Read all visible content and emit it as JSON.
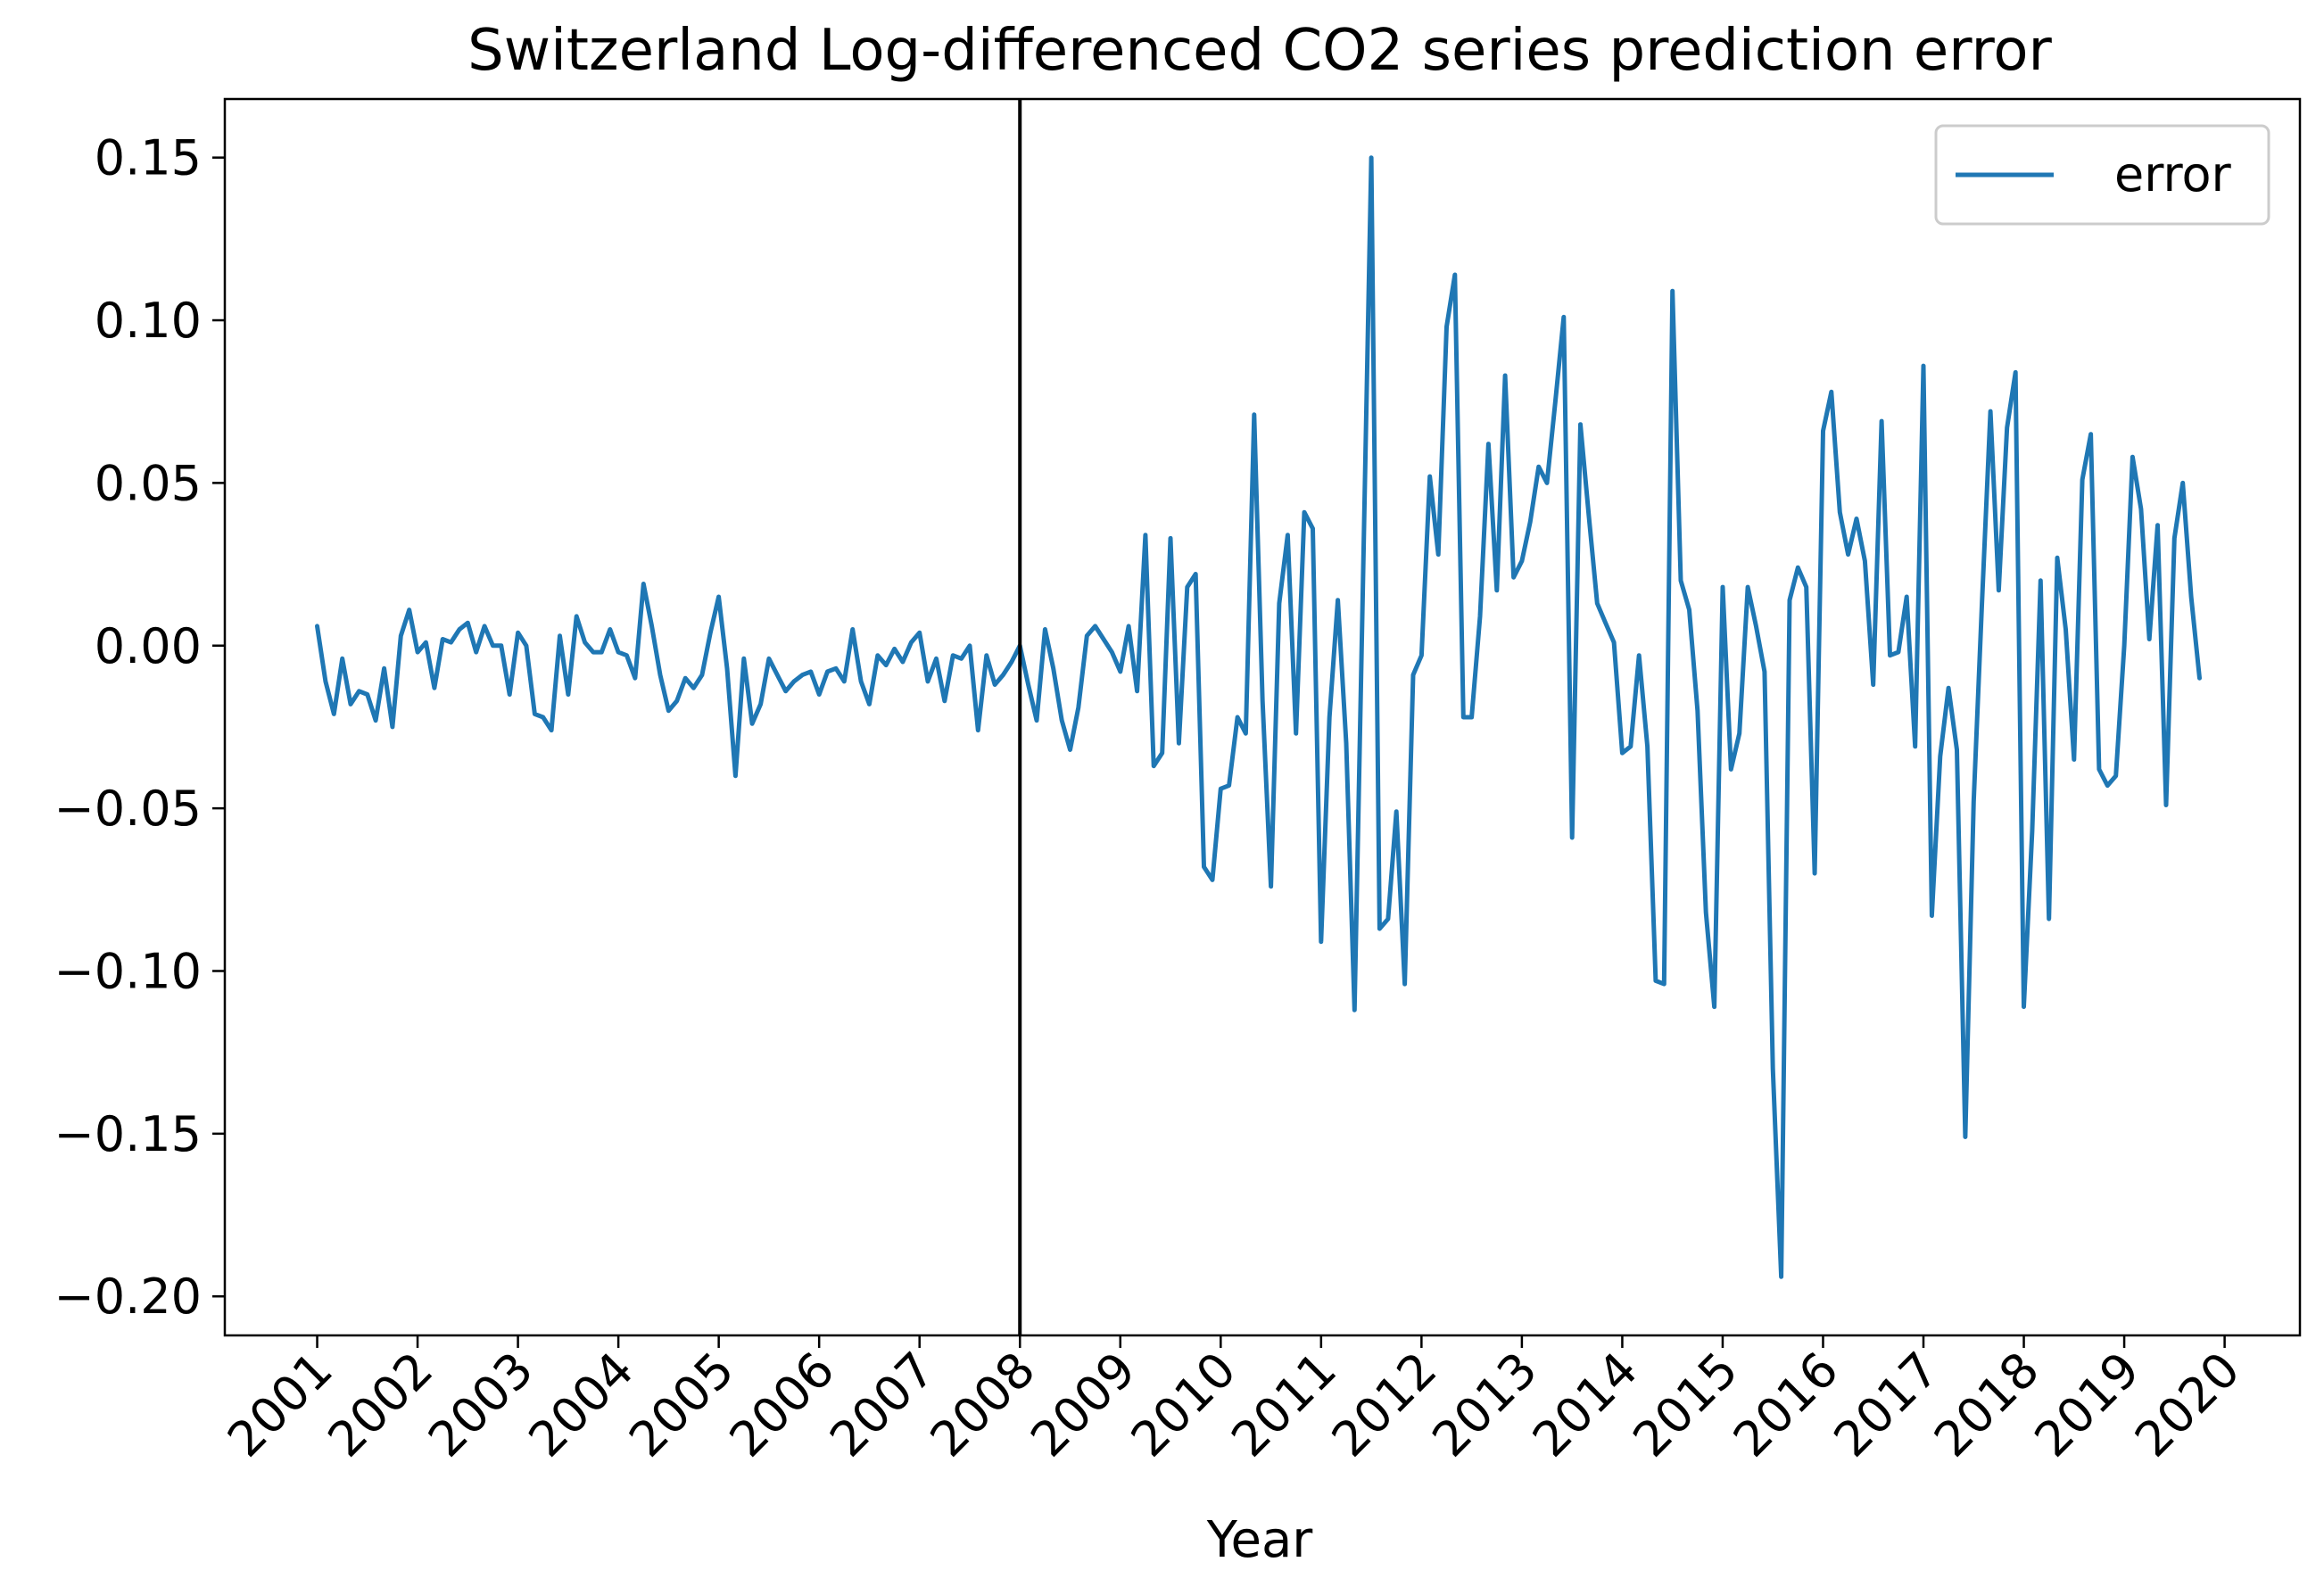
{
  "chart_data": {
    "type": "line",
    "title": "Switzerland Log-differenced CO2 series prediction error",
    "xlabel": "Year",
    "ylabel": "",
    "x_ticks": [
      "2001",
      "2002",
      "2003",
      "2004",
      "2005",
      "2006",
      "2007",
      "2008",
      "2009",
      "2010",
      "2011",
      "2012",
      "2013",
      "2014",
      "2015",
      "2016",
      "2017",
      "2018",
      "2019",
      "2020"
    ],
    "y_ticks": [
      "0.15",
      "0.10",
      "0.05",
      "0.00",
      "−0.05",
      "−0.10",
      "−0.15",
      "−0.20"
    ],
    "y_tick_values": [
      0.15,
      0.1,
      0.05,
      0.0,
      -0.05,
      -0.1,
      -0.15,
      -0.2
    ],
    "xlim": [
      2000.08,
      2020.75
    ],
    "ylim": [
      -0.212,
      0.168
    ],
    "vertical_line_x": 2008.0,
    "grid": false,
    "legend_position": "top-right",
    "series": [
      {
        "name": "error",
        "color": "#1f77b4",
        "x": [
          2001.0,
          2001.083,
          2001.167,
          2001.25,
          2001.333,
          2001.417,
          2001.5,
          2001.583,
          2001.667,
          2001.75,
          2001.833,
          2001.917,
          2002.0,
          2002.083,
          2002.167,
          2002.25,
          2002.333,
          2002.417,
          2002.5,
          2002.583,
          2002.667,
          2002.75,
          2002.833,
          2002.917,
          2003.0,
          2003.083,
          2003.167,
          2003.25,
          2003.333,
          2003.417,
          2003.5,
          2003.583,
          2003.667,
          2003.75,
          2003.833,
          2003.917,
          2004.0,
          2004.083,
          2004.167,
          2004.25,
          2004.333,
          2004.417,
          2004.5,
          2004.583,
          2004.667,
          2004.75,
          2004.833,
          2004.917,
          2005.0,
          2005.083,
          2005.167,
          2005.25,
          2005.333,
          2005.417,
          2005.5,
          2005.583,
          2005.667,
          2005.75,
          2005.833,
          2005.917,
          2006.0,
          2006.083,
          2006.167,
          2006.25,
          2006.333,
          2006.417,
          2006.5,
          2006.583,
          2006.667,
          2006.75,
          2006.833,
          2006.917,
          2007.0,
          2007.083,
          2007.167,
          2007.25,
          2007.333,
          2007.417,
          2007.5,
          2007.583,
          2007.667,
          2007.75,
          2007.833,
          2007.917,
          2008.0,
          2008.083,
          2008.167,
          2008.25,
          2008.333,
          2008.417,
          2008.5,
          2008.583,
          2008.667,
          2008.75,
          2008.833,
          2008.917,
          2009.0,
          2009.083,
          2009.167,
          2009.25,
          2009.333,
          2009.417,
          2009.5,
          2009.583,
          2009.667,
          2009.75,
          2009.833,
          2009.917,
          2010.0,
          2010.083,
          2010.167,
          2010.25,
          2010.333,
          2010.417,
          2010.5,
          2010.583,
          2010.667,
          2010.75,
          2010.833,
          2010.917,
          2011.0,
          2011.083,
          2011.167,
          2011.25,
          2011.333,
          2011.417,
          2011.5,
          2011.583,
          2011.667,
          2011.75,
          2011.833,
          2011.917,
          2012.0,
          2012.083,
          2012.167,
          2012.25,
          2012.333,
          2012.417,
          2012.5,
          2012.583,
          2012.667,
          2012.75,
          2012.833,
          2012.917,
          2013.0,
          2013.083,
          2013.167,
          2013.25,
          2013.333,
          2013.417,
          2013.5,
          2013.583,
          2013.667,
          2013.75,
          2013.833,
          2013.917,
          2014.0,
          2014.083,
          2014.167,
          2014.25,
          2014.333,
          2014.417,
          2014.5,
          2014.583,
          2014.667,
          2014.75,
          2014.833,
          2014.917,
          2015.0,
          2015.083,
          2015.167,
          2015.25,
          2015.333,
          2015.417,
          2015.5,
          2015.583,
          2015.667,
          2015.75,
          2015.833,
          2015.917,
          2016.0,
          2016.083,
          2016.167,
          2016.25,
          2016.333,
          2016.417,
          2016.5,
          2016.583,
          2016.667,
          2016.75,
          2016.833,
          2016.917,
          2017.0,
          2017.083,
          2017.167,
          2017.25,
          2017.333,
          2017.417,
          2017.5,
          2017.583,
          2017.667,
          2017.75,
          2017.833,
          2017.917,
          2018.0,
          2018.083,
          2018.167,
          2018.25,
          2018.333,
          2018.417,
          2018.5,
          2018.583,
          2018.667,
          2018.75,
          2018.833,
          2018.917,
          2019.0,
          2019.083,
          2019.167,
          2019.25,
          2019.333,
          2019.417,
          2019.5,
          2019.583,
          2019.667,
          2019.75
        ],
        "y": [
          0.006,
          -0.011,
          -0.021,
          -0.004,
          -0.018,
          -0.014,
          -0.015,
          -0.023,
          -0.007,
          -0.025,
          0.003,
          0.011,
          -0.002,
          0.001,
          -0.013,
          0.002,
          0.001,
          0.005,
          0.007,
          -0.002,
          0.006,
          0.0,
          0.0,
          -0.015,
          0.004,
          0.0,
          -0.021,
          -0.022,
          -0.026,
          0.003,
          -0.015,
          0.009,
          0.001,
          -0.002,
          -0.002,
          0.005,
          -0.002,
          -0.003,
          -0.01,
          0.019,
          0.006,
          -0.009,
          -0.02,
          -0.017,
          -0.01,
          -0.013,
          -0.009,
          0.004,
          0.015,
          -0.007,
          -0.04,
          -0.004,
          -0.024,
          -0.018,
          -0.004,
          -0.009,
          -0.014,
          -0.011,
          -0.009,
          -0.008,
          -0.015,
          -0.008,
          -0.007,
          -0.011,
          0.005,
          -0.011,
          -0.018,
          -0.003,
          -0.006,
          -0.001,
          -0.005,
          0.001,
          0.004,
          -0.011,
          -0.004,
          -0.017,
          -0.003,
          -0.004,
          0.0,
          -0.026,
          -0.003,
          -0.012,
          -0.009,
          -0.005,
          0.0,
          -0.012,
          -0.023,
          0.005,
          -0.007,
          -0.023,
          -0.032,
          -0.019,
          0.003,
          0.006,
          0.002,
          -0.002,
          -0.008,
          0.006,
          -0.014,
          0.034,
          -0.037,
          -0.033,
          0.033,
          -0.03,
          0.018,
          0.022,
          -0.068,
          -0.072,
          -0.044,
          -0.043,
          -0.022,
          -0.027,
          0.071,
          -0.017,
          -0.074,
          0.013,
          0.034,
          -0.027,
          0.041,
          0.036,
          -0.091,
          -0.022,
          0.014,
          -0.03,
          -0.112,
          0.02,
          0.15,
          -0.087,
          -0.084,
          -0.051,
          -0.104,
          -0.009,
          -0.003,
          0.052,
          0.028,
          0.098,
          0.114,
          -0.022,
          -0.022,
          0.009,
          0.062,
          0.017,
          0.083,
          0.021,
          0.026,
          0.038,
          0.055,
          0.05,
          0.075,
          0.101,
          -0.059,
          0.068,
          0.04,
          0.013,
          0.007,
          0.001,
          -0.033,
          -0.031,
          -0.003,
          -0.031,
          -0.103,
          -0.104,
          0.109,
          0.02,
          0.011,
          -0.02,
          -0.082,
          -0.111,
          0.018,
          -0.038,
          -0.027,
          0.018,
          0.006,
          -0.008,
          -0.13,
          -0.194,
          0.014,
          0.024,
          0.018,
          -0.07,
          0.066,
          0.078,
          0.041,
          0.028,
          0.039,
          0.026,
          -0.012,
          0.069,
          -0.003,
          -0.002,
          0.015,
          -0.031,
          0.086,
          -0.083,
          -0.034,
          -0.013,
          -0.032,
          -0.151,
          -0.048,
          0.013,
          0.072,
          0.017,
          0.067,
          0.084,
          -0.111,
          -0.057,
          0.02,
          -0.084,
          0.027,
          0.005,
          -0.035,
          0.051,
          0.065,
          -0.038,
          -0.043,
          -0.04,
          0.0,
          0.058,
          0.042,
          0.002,
          0.037,
          -0.049,
          0.033,
          0.05,
          0.015,
          -0.01
        ]
      }
    ]
  }
}
